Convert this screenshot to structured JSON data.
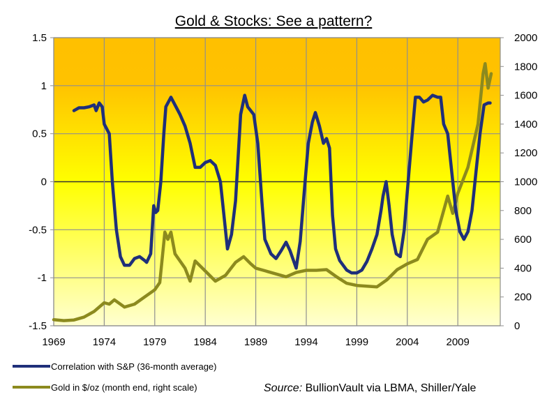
{
  "chart_data": {
    "type": "line",
    "title": "Gold & Stocks: See a pattern?",
    "xlabel": "",
    "ylabel": "",
    "y2label": "",
    "xlim": [
      1969,
      2013.2
    ],
    "ylim": [
      -1.5,
      1.5
    ],
    "y2lim": [
      0,
      2000
    ],
    "x_ticks": [
      "1969",
      "1974",
      "1979",
      "1984",
      "1989",
      "1994",
      "1999",
      "2004",
      "2009"
    ],
    "x_tick_values": [
      1969,
      1974,
      1979,
      1984,
      1989,
      1994,
      1999,
      2004,
      2009
    ],
    "y_ticks": [
      "1.5",
      "1",
      "0.5",
      "0",
      "-0.5",
      "-1",
      "-1.5"
    ],
    "y_tick_values": [
      1.5,
      1,
      0.5,
      0,
      -0.5,
      -1,
      -1.5
    ],
    "y2_ticks": [
      "2000",
      "1800",
      "1600",
      "1400",
      "1200",
      "1000",
      "800",
      "600",
      "400",
      "200",
      "0"
    ],
    "y2_tick_values": [
      2000,
      1800,
      1600,
      1400,
      1200,
      1000,
      800,
      600,
      400,
      200,
      0
    ],
    "grid": true,
    "legend_position": "bottom-left",
    "background_gradient": [
      "#FFC000",
      "#FFFF00",
      "#FFFFD0"
    ],
    "series": [
      {
        "name": "Correlation with S&P (36-month average)",
        "axis": "left",
        "color": "#1F2F7A",
        "x": [
          1971.0,
          1971.5,
          1972.0,
          1972.5,
          1973.0,
          1973.2,
          1973.5,
          1973.8,
          1974.0,
          1974.5,
          1974.8,
          1975.2,
          1975.6,
          1976.0,
          1976.5,
          1977.0,
          1977.5,
          1978.0,
          1978.2,
          1978.6,
          1978.9,
          1979.1,
          1979.3,
          1979.6,
          1979.9,
          1980.1,
          1980.6,
          1981.0,
          1981.5,
          1982.0,
          1982.5,
          1983.0,
          1983.5,
          1984.0,
          1984.5,
          1985.0,
          1985.5,
          1985.9,
          1986.2,
          1986.6,
          1987.0,
          1987.5,
          1987.9,
          1988.2,
          1988.8,
          1989.2,
          1989.6,
          1989.9,
          1990.5,
          1991.0,
          1991.5,
          1992.0,
          1992.4,
          1993.0,
          1993.4,
          1993.8,
          1994.2,
          1994.6,
          1994.9,
          1995.3,
          1995.7,
          1996.0,
          1996.3,
          1996.6,
          1996.9,
          1997.3,
          1998.0,
          1998.5,
          1999.0,
          1999.5,
          2000.0,
          2000.5,
          2001.0,
          2001.4,
          2001.6,
          2001.9,
          2002.2,
          2002.5,
          2002.9,
          2003.3,
          2003.7,
          2004.0,
          2004.4,
          2004.8,
          2005.2,
          2005.6,
          2006.0,
          2006.5,
          2007.0,
          2007.3,
          2007.6,
          2008.0,
          2008.4,
          2008.8,
          2009.2,
          2009.6,
          2010.0,
          2010.4,
          2010.8,
          2011.2,
          2011.6,
          2012.0,
          2012.2
        ],
        "values": [
          0.74,
          0.77,
          0.77,
          0.78,
          0.8,
          0.74,
          0.82,
          0.78,
          0.6,
          0.5,
          0.0,
          -0.5,
          -0.78,
          -0.87,
          -0.87,
          -0.8,
          -0.78,
          -0.82,
          -0.84,
          -0.75,
          -0.25,
          -0.32,
          -0.3,
          0.0,
          0.5,
          0.78,
          0.88,
          0.8,
          0.7,
          0.58,
          0.4,
          0.15,
          0.15,
          0.2,
          0.22,
          0.17,
          0.0,
          -0.4,
          -0.7,
          -0.55,
          -0.2,
          0.7,
          0.9,
          0.78,
          0.7,
          0.4,
          -0.2,
          -0.6,
          -0.75,
          -0.8,
          -0.72,
          -0.63,
          -0.72,
          -0.9,
          -0.62,
          -0.1,
          0.4,
          0.62,
          0.72,
          0.58,
          0.4,
          0.45,
          0.35,
          -0.35,
          -0.7,
          -0.82,
          -0.92,
          -0.95,
          -0.95,
          -0.92,
          -0.83,
          -0.7,
          -0.55,
          -0.3,
          -0.15,
          0.0,
          -0.25,
          -0.55,
          -0.75,
          -0.78,
          -0.5,
          -0.1,
          0.4,
          0.88,
          0.88,
          0.83,
          0.85,
          0.9,
          0.88,
          0.88,
          0.6,
          0.5,
          0.1,
          -0.3,
          -0.52,
          -0.6,
          -0.52,
          -0.3,
          0.1,
          0.5,
          0.8,
          0.82,
          0.82
        ]
      },
      {
        "name": "Gold in $/oz (month end, right scale)",
        "axis": "right",
        "color": "#8C8A1E",
        "x": [
          1969.0,
          1970.0,
          1971.0,
          1972.0,
          1973.0,
          1974.0,
          1974.5,
          1975.0,
          1976.0,
          1977.0,
          1978.0,
          1979.0,
          1979.5,
          1980.0,
          1980.3,
          1980.6,
          1981.0,
          1982.0,
          1982.5,
          1983.0,
          1984.0,
          1985.0,
          1986.0,
          1987.0,
          1987.8,
          1988.5,
          1989.0,
          1990.0,
          1991.0,
          1992.0,
          1993.0,
          1994.0,
          1995.0,
          1996.0,
          1997.0,
          1998.0,
          1999.0,
          2000.0,
          2001.0,
          2002.0,
          2003.0,
          2004.0,
          2005.0,
          2006.0,
          2007.0,
          2008.0,
          2008.5,
          2009.0,
          2010.0,
          2010.5,
          2011.0,
          2011.5,
          2011.7,
          2012.0,
          2012.3
        ],
        "values": [
          42,
          36,
          40,
          60,
          100,
          160,
          150,
          180,
          130,
          150,
          200,
          250,
          300,
          650,
          600,
          650,
          500,
          400,
          310,
          450,
          380,
          310,
          350,
          440,
          480,
          430,
          400,
          380,
          360,
          340,
          370,
          385,
          385,
          390,
          340,
          295,
          280,
          275,
          270,
          320,
          390,
          430,
          460,
          600,
          650,
          900,
          780,
          920,
          1100,
          1250,
          1400,
          1750,
          1820,
          1650,
          1750
        ]
      }
    ]
  },
  "footer": {
    "source_label": "Source:",
    "source_text": " BullionVault via LBMA, Shiller/Yale"
  }
}
